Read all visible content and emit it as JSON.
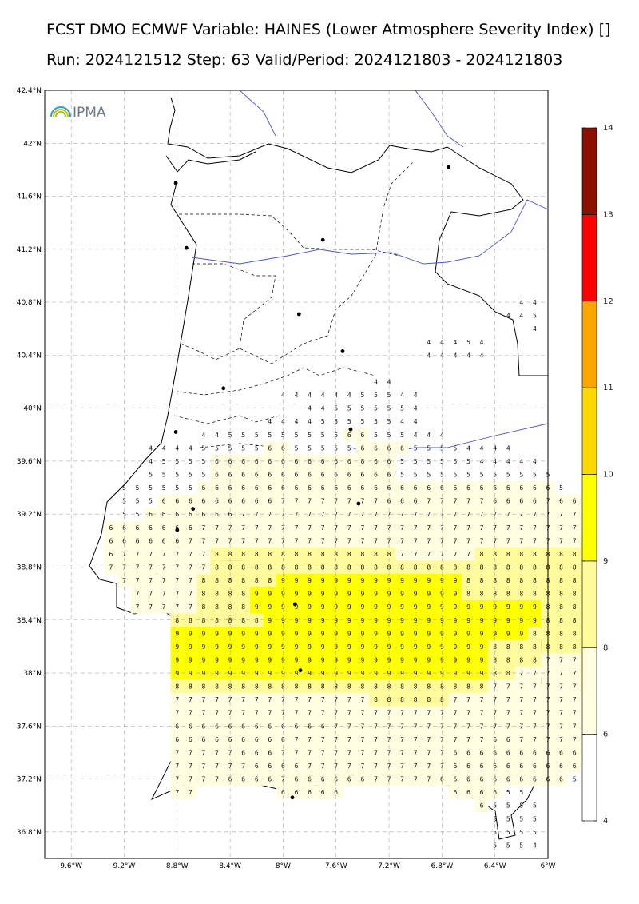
{
  "header": {
    "line1": "FCST DMO ECMWF Variable: HAINES (Lower Atmosphere Severity Index) []",
    "line2": "Run: 2024121512 Step: 63 Valid/Period: 2024121803 - 2024121803"
  },
  "logo": {
    "text": "IPMA",
    "icon": "rainbow-icon"
  },
  "map": {
    "lat_ticks": [
      "42.4°N",
      "42°N",
      "41.6°N",
      "41.2°N",
      "40.8°N",
      "40.4°N",
      "40°N",
      "39.6°N",
      "39.2°N",
      "38.8°N",
      "38.4°N",
      "38°N",
      "37.6°N",
      "37.2°N",
      "36.8°N"
    ],
    "lon_ticks": [
      "9.6°W",
      "9.2°W",
      "8.8°W",
      "8.4°W",
      "8°W",
      "7.6°W",
      "7.2°W",
      "6.8°W",
      "6.4°W",
      "6°W"
    ],
    "lat_range": [
      36.6,
      42.4
    ],
    "lon_range": [
      -9.8,
      -6.0
    ],
    "grid_step_deg": 0.1,
    "ocean_color": "#ffffff",
    "land_outline_color": "#000000",
    "river_color": "#4a54c8",
    "grid_rows": [
      {
        "lat": 40.8,
        "lon0": -6.2,
        "values": "44"
      },
      {
        "lat": 40.7,
        "lon0": -6.3,
        "values": "445"
      },
      {
        "lat": 40.6,
        "lon0": -6.1,
        "values": "4"
      },
      {
        "lat": 40.5,
        "lon0": -6.9,
        "values": "44454"
      },
      {
        "lat": 40.4,
        "lon0": -6.9,
        "values": "44444"
      },
      {
        "lat": 40.2,
        "lon0": -7.3,
        "values": "44"
      },
      {
        "lat": 40.1,
        "lon0": -8.0,
        "values": "44444455544"
      },
      {
        "lat": 40.0,
        "lon0": -7.8,
        "values": "445555554"
      },
      {
        "lat": 39.9,
        "lon0": -8.1,
        "values": "444455555544"
      },
      {
        "lat": 39.8,
        "lon0": -8.6,
        "values": "4455555555566555444"
      },
      {
        "lat": 39.7,
        "lon0": -9.0,
        "values": "4444555556655555666655554444"
      },
      {
        "lat": 39.6,
        "lon0": -9.0,
        "values": "455556666666666666655555544444"
      },
      {
        "lat": 39.5,
        "lon0": -9.0,
        "values": "5555566666666666666555555555555"
      },
      {
        "lat": 39.4,
        "lon0": -9.2,
        "values": "5555556666666666666666666666666665"
      },
      {
        "lat": 39.3,
        "lon0": -9.2,
        "values": "55566666666677777777666777776666766"
      },
      {
        "lat": 39.2,
        "lon0": -9.2,
        "values": "556666666777777777777777777777777777"
      },
      {
        "lat": 39.1,
        "lon0": -9.3,
        "values": "6666666777777777777777777777777777777"
      },
      {
        "lat": 39.0,
        "lon0": -9.3,
        "values": "6666667777777777777777777777777777778"
      },
      {
        "lat": 38.9,
        "lon0": -9.3,
        "values": "6777777788888888888888777777888888888"
      },
      {
        "lat": 38.8,
        "lon0": -9.3,
        "values": "7777777788888888888888888888888888888"
      },
      {
        "lat": 38.7,
        "lon0": -9.2,
        "values": "777777888888999999999999998888888888"
      },
      {
        "lat": 38.6,
        "lon0": -9.1,
        "values": "77777888899999999999999998888888888"
      },
      {
        "lat": 38.5,
        "lon0": -9.1,
        "values": "77777888899999999999999999999998888"
      },
      {
        "lat": 38.4,
        "lon0": -8.8,
        "values": "88888889999999999999999999998888"
      },
      {
        "lat": 38.3,
        "lon0": -8.8,
        "values": "99999999999999999999999999988888"
      },
      {
        "lat": 38.2,
        "lon0": -8.8,
        "values": "99999999999999999999999988888888"
      },
      {
        "lat": 38.1,
        "lon0": -8.8,
        "values": "99999999999999999999999988887778"
      },
      {
        "lat": 38.0,
        "lon0": -8.8,
        "values": "99999999999999999999999988777778"
      },
      {
        "lat": 37.9,
        "lon0": -8.8,
        "values": "88888888888888888888888877777778"
      },
      {
        "lat": 37.8,
        "lon0": -8.8,
        "values": "77777777777777788888877777777777"
      },
      {
        "lat": 37.7,
        "lon0": -8.8,
        "values": "77777777777777777777777777777777"
      },
      {
        "lat": 37.6,
        "lon0": -8.8,
        "values": "66666666666677777777777777777777"
      },
      {
        "lat": 37.5,
        "lon0": -8.8,
        "values": "66666666677777777777777766777776"
      },
      {
        "lat": 37.4,
        "lon0": -8.8,
        "values": "77777666777777777777766666666666"
      },
      {
        "lat": 37.3,
        "lon0": -8.8,
        "values": "77777766667777777777766666666665"
      },
      {
        "lat": 37.2,
        "lon0": -8.8,
        "values": "7777666676666667777766666666665"
      },
      {
        "lat": 37.1,
        "lon0": -8.8,
        "values": "77"
      },
      {
        "lat": 37.1,
        "lon0": -8.0,
        "values": "66666"
      },
      {
        "lat": 37.1,
        "lon0": -6.7,
        "values": "666655"
      },
      {
        "lat": 37.0,
        "lon0": -6.5,
        "values": "65555"
      },
      {
        "lat": 36.9,
        "lon0": -6.4,
        "values": "5555"
      },
      {
        "lat": 36.8,
        "lon0": -6.4,
        "values": "5555"
      },
      {
        "lat": 36.7,
        "lon0": -6.4,
        "values": "5554"
      }
    ],
    "cities": [
      {
        "lat": 41.7,
        "lon": -8.81
      },
      {
        "lat": 41.82,
        "lon": -6.75
      },
      {
        "lat": 41.21,
        "lon": -8.73
      },
      {
        "lat": 41.27,
        "lon": -7.7
      },
      {
        "lat": 40.71,
        "lon": -7.88
      },
      {
        "lat": 40.43,
        "lon": -7.55
      },
      {
        "lat": 40.15,
        "lon": -8.45
      },
      {
        "lat": 39.82,
        "lon": -8.81
      },
      {
        "lat": 39.84,
        "lon": -7.49
      },
      {
        "lat": 39.28,
        "lon": -7.43
      },
      {
        "lat": 39.24,
        "lon": -8.68
      },
      {
        "lat": 38.52,
        "lon": -7.91
      },
      {
        "lat": 38.02,
        "lon": -7.87
      },
      {
        "lat": 37.06,
        "lon": -7.93
      },
      {
        "lat": 39.08,
        "lon": -8.8
      }
    ]
  },
  "colorbar": {
    "labels": [
      "4",
      "6",
      "8",
      "9",
      "10",
      "11",
      "12",
      "13",
      "14"
    ],
    "levels": [
      4,
      6,
      8,
      9,
      10,
      11,
      12,
      13,
      14
    ],
    "colors": [
      "#ffffff",
      "#fffde0",
      "#fffa9a",
      "#ffff00",
      "#ffd700",
      "#ffa500",
      "#ff0000",
      "#8b1000"
    ]
  }
}
